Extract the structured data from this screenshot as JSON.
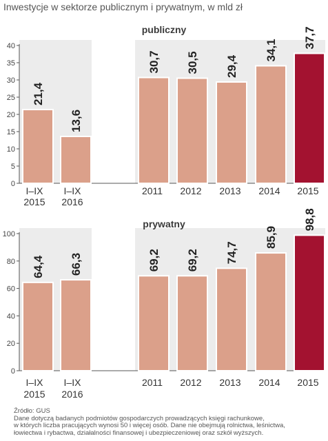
{
  "title": "Inwestycje w sektorze publicznym i prywatnym, w mld zł",
  "colors": {
    "bar": "#dba08a",
    "bar_highlight": "#a31230",
    "panel_bg": "#ececec",
    "axis": "#555555"
  },
  "chart_data": [
    {
      "type": "bar",
      "title": "publiczny",
      "categories": [
        "I–IX\n2015",
        "I–IX\n2016",
        "2011",
        "2012",
        "2013",
        "2014",
        "2015"
      ],
      "values": [
        21.4,
        13.6,
        30.7,
        30.5,
        29.4,
        34.1,
        37.7
      ],
      "value_labels": [
        "21,4",
        "13,6",
        "30,7",
        "30,5",
        "29,4",
        "34,1",
        "37,7"
      ],
      "yticks": [
        0,
        5,
        10,
        15,
        20,
        25,
        30,
        35,
        40
      ],
      "ylim": [
        0,
        40
      ],
      "highlight": 6,
      "xlabel": "",
      "ylabel": ""
    },
    {
      "type": "bar",
      "title": "prywatny",
      "categories": [
        "I–IX\n2015",
        "I–IX\n2016",
        "2011",
        "2012",
        "2013",
        "2014",
        "2015"
      ],
      "values": [
        64.4,
        66.3,
        69.2,
        69.2,
        74.7,
        85.9,
        98.8
      ],
      "value_labels": [
        "64,4",
        "66,3",
        "69,2",
        "69,2",
        "74,7",
        "85,9",
        "98,8"
      ],
      "yticks": [
        0,
        20,
        40,
        60,
        80,
        100
      ],
      "ylim": [
        0,
        100
      ],
      "highlight": 6,
      "xlabel": "",
      "ylabel": ""
    }
  ],
  "footer": {
    "source": "Źródło: GUS",
    "note_lines": [
      "Dane dotyczą badanych podmiotów gospodarczych prowadzących księgi rachunkowe,",
      "w których liczba pracujących wynosi 50 i więcej osób. Dane nie obejmują rolnictwa, leśnictwa,",
      "łowiectwa i rybactwa, działalności finansowej i ubezpieczeniowej oraz szkół wyższych."
    ]
  }
}
